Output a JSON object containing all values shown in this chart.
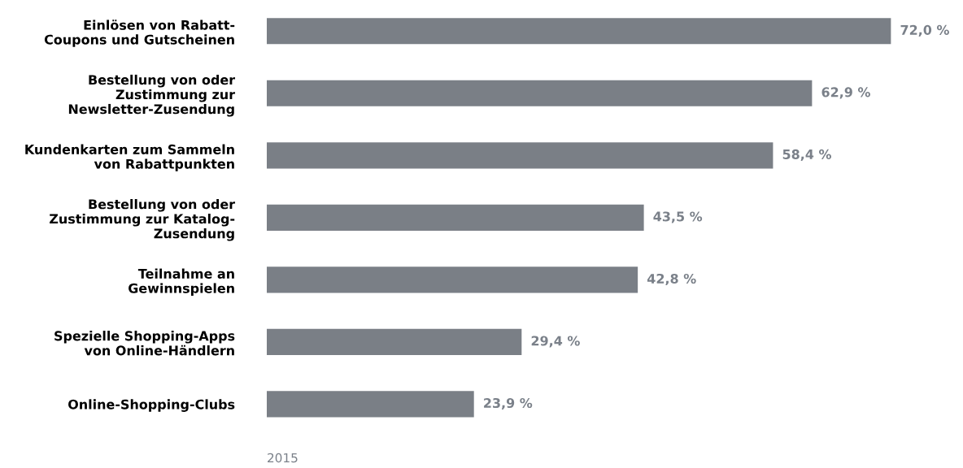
{
  "chart_data": {
    "type": "bar",
    "orientation": "horizontal",
    "categories": [
      "Einlösen von Rabatt-\nCoupons und Gutscheinen",
      "Bestellung von oder\nZustimmung zur\nNewsletter-Zusendung",
      "Kundenkarten zum Sammeln\nvon Rabattpunkten",
      "Bestellung von oder\nZustimmung zur Katalog-\nZusendung",
      "Teilnahme an\nGewinnspielen",
      "Spezielle Shopping-Apps\nvon Online-Händlern",
      "Online-Shopping-Clubs"
    ],
    "values": [
      72.0,
      62.9,
      58.4,
      43.5,
      42.8,
      29.4,
      23.9
    ],
    "value_labels": [
      "72,0 %",
      "62,9 %",
      "58,4 %",
      "43,5 %",
      "42,8 %",
      "29,4 %",
      "23,9 %"
    ],
    "color": "#7a7f86",
    "grid": false,
    "legend": false,
    "tick_labels": "y",
    "annotations": [
      "2015"
    ]
  }
}
